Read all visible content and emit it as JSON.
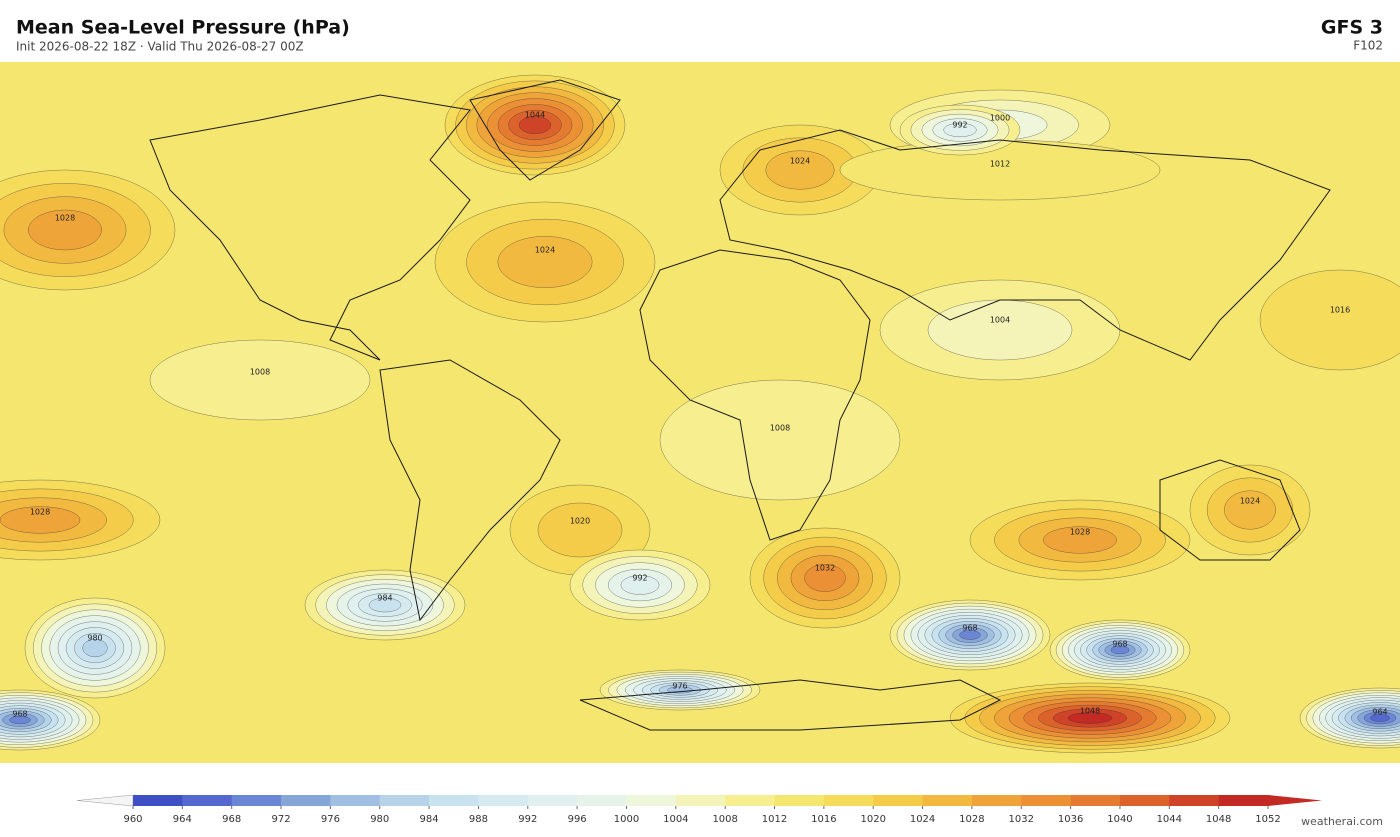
{
  "header": {
    "title": "Mean Sea-Level Pressure  (hPa)",
    "subtitle": "Init 2026-08-22 18Z   ·   Valid Thu 2026-08-27 00Z",
    "model": "GFS  3",
    "forecast": "F102"
  },
  "map": {
    "pressure_centers": [
      1044,
      1024,
      1028,
      1000,
      1028,
      1020,
      1032,
      1028,
      1024,
      1048,
      968,
      968,
      980,
      984,
      992,
      968,
      964,
      976,
      1024,
      1004,
      1008,
      1016,
      1008,
      1012,
      992
    ],
    "background_level": 1012
  },
  "colorbar": {
    "ticks": [
      960,
      964,
      968,
      972,
      976,
      980,
      984,
      988,
      992,
      996,
      1000,
      1004,
      1008,
      1012,
      1016,
      1020,
      1024,
      1028,
      1032,
      1036,
      1040,
      1044,
      1048,
      1052
    ],
    "colors": [
      "#3f4fc4",
      "#5468d0",
      "#6a86d4",
      "#86a6d8",
      "#a0bfe2",
      "#b6d3ea",
      "#c9e2ef",
      "#d6ebf0",
      "#dff0ef",
      "#e6f3ea",
      "#eef7dc",
      "#f5f4b8",
      "#f6ee8f",
      "#f4e66e",
      "#f5dc5a",
      "#f4cc4a",
      "#f2b940",
      "#efa43a",
      "#ec9035",
      "#e57b30",
      "#dc622b",
      "#cf4428",
      "#c32a24"
    ],
    "under_color": "#f5f5f5",
    "over_color": "#c32a24"
  },
  "footer": {
    "watermark": "weatherai.com"
  }
}
